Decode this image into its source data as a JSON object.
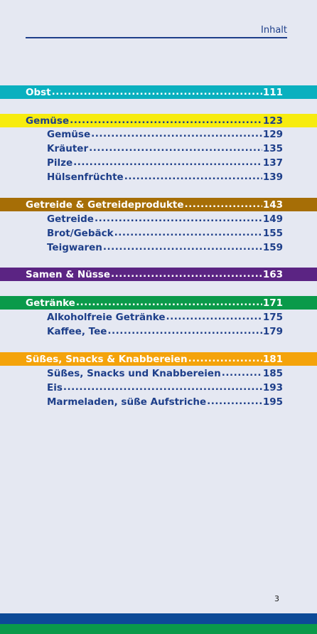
{
  "header": {
    "title": "Inhalt"
  },
  "page_number": "3",
  "dots": "..........................................................................................................................",
  "toc": [
    {
      "label": "Obst",
      "page": "111",
      "level": "section",
      "bg": "#0ab0bf",
      "fg": "#ffffff"
    },
    {
      "label": "Gemüse",
      "page": "123",
      "level": "section",
      "bg": "#f7ec0f",
      "fg": "#1e3f8a"
    },
    {
      "label": "Gemüse",
      "page": "129",
      "level": "sub"
    },
    {
      "label": "Kräuter",
      "page": "135",
      "level": "sub"
    },
    {
      "label": "Pilze",
      "page": "137",
      "level": "sub"
    },
    {
      "label": "Hülsenfrüchte",
      "page": "139",
      "level": "sub"
    },
    {
      "label": "Getreide & Getreideprodukte",
      "page": "143",
      "level": "section",
      "bg": "#a66e06",
      "fg": "#ffffff"
    },
    {
      "label": "Getreide",
      "page": "149",
      "level": "sub"
    },
    {
      "label": "Brot/Gebäck",
      "page": "155",
      "level": "sub"
    },
    {
      "label": "Teigwaren",
      "page": "159",
      "level": "sub"
    },
    {
      "label": "Samen & Nüsse",
      "page": "163",
      "level": "section",
      "bg": "#5b2483",
      "fg": "#ffffff"
    },
    {
      "label": "Getränke",
      "page": "171",
      "level": "section",
      "bg": "#0a9a4a",
      "fg": "#ffffff"
    },
    {
      "label": "Alkoholfreie Getränke",
      "page": "175",
      "level": "sub"
    },
    {
      "label": "Kaffee, Tee",
      "page": "179",
      "level": "sub"
    },
    {
      "label": "Süßes, Snacks & Knabbereien",
      "page": "181",
      "level": "section",
      "bg": "#f4a30b",
      "fg": "#ffffff"
    },
    {
      "label": "Süßes, Snacks und Knabbereien",
      "page": "185",
      "level": "sub"
    },
    {
      "label": "Eis",
      "page": "193",
      "level": "sub"
    },
    {
      "label": "Marmeladen, süße Aufstriche",
      "page": "195",
      "level": "sub"
    }
  ]
}
